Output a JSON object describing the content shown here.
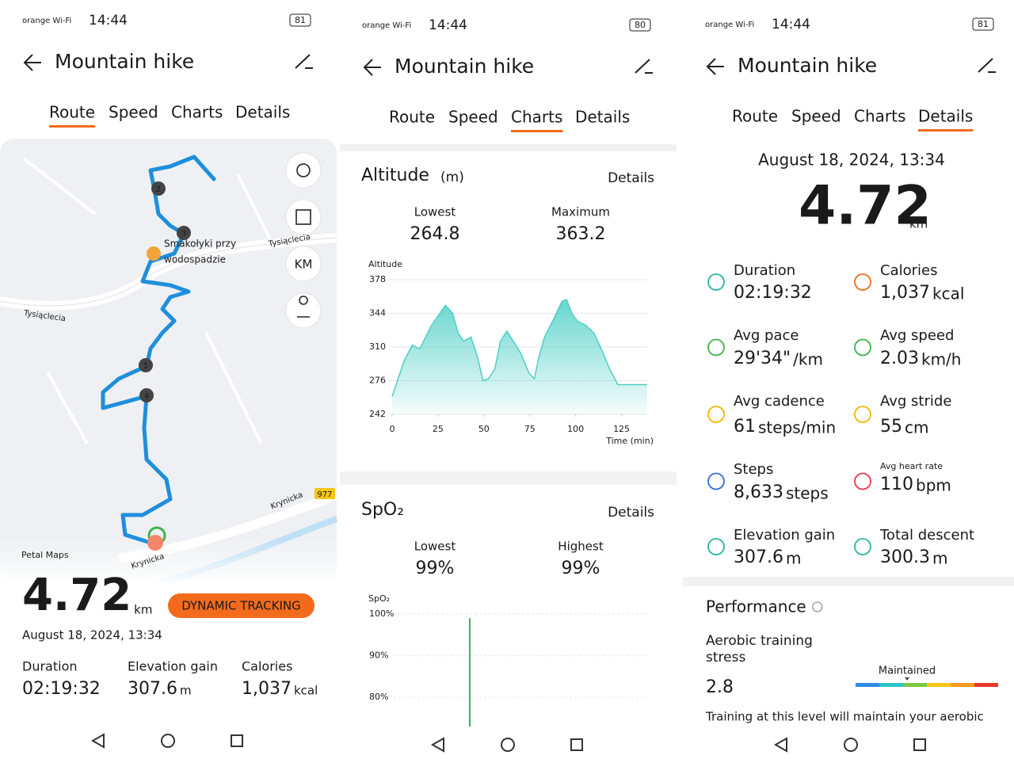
{
  "screens": [
    {
      "status_bar": {
        "carrier": "orange Wi-Fi",
        "time": "14:44",
        "battery": "81"
      },
      "title": "Mountain hike",
      "tabs": [
        "Route",
        "Speed",
        "Charts",
        "Details"
      ],
      "active_tab": 0,
      "map": {
        "place_lines": [
          "Smakołyki przy",
          "wodospadzie"
        ],
        "streets": [
          "Tysiąclecia",
          "Tysiąclecia",
          "Krynicka",
          "Krynicka"
        ],
        "road_number": "977",
        "attribution": "Petal Maps",
        "markers": [
          "1",
          "2",
          "3",
          "4"
        ],
        "unit_button": "KM"
      },
      "summary": {
        "distance": "4.72",
        "distance_unit": "km",
        "badge": "DYNAMIC TRACKING",
        "date": "August 18, 2024, 13:34"
      },
      "stats": [
        {
          "label": "Duration",
          "value": "02:19:32"
        },
        {
          "label": "Elevation gain",
          "value": "307.6",
          "unit": "m"
        },
        {
          "label": "Calories",
          "value": "1,037",
          "unit": "kcal"
        }
      ]
    },
    {
      "status_bar": {
        "carrier": "orange Wi-Fi",
        "time": "14:44",
        "battery": "80"
      },
      "title": "Mountain hike",
      "tabs": [
        "Route",
        "Speed",
        "Charts",
        "Details"
      ],
      "active_tab": 2,
      "altitude": {
        "title": "Altitude",
        "unit": "(m)",
        "link": "Details",
        "stats": [
          {
            "label": "Lowest",
            "value": "264.8"
          },
          {
            "label": "Maximum",
            "value": "363.2"
          }
        ],
        "chart_data": {
          "type": "area",
          "y_label": "Altitude",
          "x_label": "Time (min)",
          "x": [
            0,
            6.5,
            11,
            15,
            21.5,
            26,
            29,
            33,
            36,
            39,
            43,
            46.5,
            49.5,
            52.5,
            56,
            59,
            62.5,
            66,
            70,
            74.5,
            77.5,
            80,
            83,
            88.5,
            92.5,
            95,
            98,
            101,
            105.5,
            110,
            114,
            118.5,
            123,
            127,
            139
          ],
          "values": [
            260,
            296,
            312,
            308,
            332,
            344,
            352,
            344,
            324,
            316,
            320,
            300,
            276,
            278,
            288,
            316,
            326,
            316,
            304,
            284,
            278,
            300,
            320,
            340,
            356,
            358,
            344,
            336,
            332,
            324,
            308,
            288,
            272,
            272,
            272
          ],
          "xlim": [
            0,
            139
          ],
          "ylim": [
            242,
            378
          ],
          "xticks": [
            0,
            25,
            50,
            75,
            100,
            125
          ],
          "yticks": [
            242,
            276,
            310,
            344,
            378
          ],
          "color": "#4dcfc6"
        }
      },
      "spo2": {
        "title": "SpO₂",
        "link": "Details",
        "stats": [
          {
            "label": "Lowest",
            "value": "99%"
          },
          {
            "label": "Highest",
            "value": "99%"
          }
        ],
        "chart_data": {
          "type": "bar",
          "y_label": "SpO₂",
          "values": [
            99
          ],
          "ylim": [
            73,
            100
          ],
          "yticks": [
            {
              "value": 100,
              "label": "100%"
            },
            {
              "value": 90,
              "label": "90%"
            },
            {
              "value": 80,
              "label": "80%"
            }
          ],
          "color": "#3cb54a"
        }
      }
    },
    {
      "status_bar": {
        "carrier": "orange Wi-Fi",
        "time": "14:44",
        "battery": "81"
      },
      "title": "Mountain hike",
      "tabs": [
        "Route",
        "Speed",
        "Charts",
        "Details"
      ],
      "active_tab": 3,
      "date": "August 18, 2024, 13:34",
      "distance": "4.72",
      "distance_unit": "km",
      "metrics": [
        {
          "label": "Duration",
          "value": "02:19:32"
        },
        {
          "label": "Calories",
          "value": "1,037",
          "unit": "kcal"
        },
        {
          "label": "Avg pace",
          "value": "29'34\"",
          "unit": "/km"
        },
        {
          "label": "Avg speed",
          "value": "2.03",
          "unit": "km/h"
        },
        {
          "label": "Avg cadence",
          "value": "61",
          "unit": "steps/min"
        },
        {
          "label": "Avg stride",
          "value": "55",
          "unit": "cm"
        },
        {
          "label": "Steps",
          "value": "8,633",
          "unit": "steps"
        },
        {
          "label": "Avg heart rate",
          "value": "110",
          "unit": "bpm"
        },
        {
          "label": "Elevation gain",
          "value": "307.6",
          "unit": "m"
        },
        {
          "label": "Total descent",
          "value": "300.3",
          "unit": "m"
        }
      ],
      "performance": {
        "title": "Performance",
        "label_lines": [
          "Aerobic training",
          "stress"
        ],
        "value": "2.8",
        "level": "Maintained",
        "note": "Training at this level will maintain your aerobic"
      }
    }
  ]
}
